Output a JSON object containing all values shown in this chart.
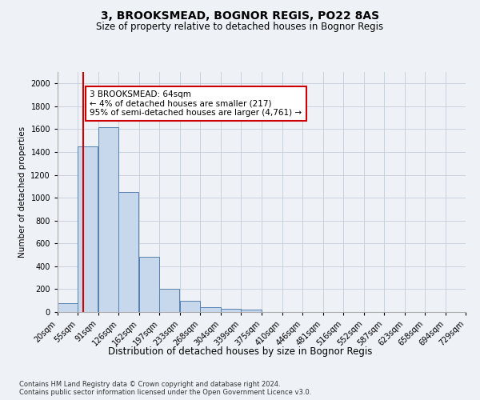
{
  "title1": "3, BROOKSMEAD, BOGNOR REGIS, PO22 8AS",
  "title2": "Size of property relative to detached houses in Bognor Regis",
  "xlabel": "Distribution of detached houses by size in Bognor Regis",
  "ylabel": "Number of detached properties",
  "bins": [
    "20sqm",
    "55sqm",
    "91sqm",
    "126sqm",
    "162sqm",
    "197sqm",
    "233sqm",
    "268sqm",
    "304sqm",
    "339sqm",
    "375sqm",
    "410sqm",
    "446sqm",
    "481sqm",
    "516sqm",
    "552sqm",
    "587sqm",
    "623sqm",
    "658sqm",
    "694sqm",
    "729sqm"
  ],
  "bin_left_edges": [
    20,
    55,
    91,
    126,
    162,
    197,
    233,
    268,
    304,
    339,
    375,
    410,
    446,
    481,
    516,
    552,
    587,
    623,
    658,
    694
  ],
  "bin_width": 35,
  "values": [
    75,
    1450,
    1620,
    1050,
    480,
    200,
    100,
    40,
    25,
    20,
    0,
    0,
    0,
    0,
    0,
    0,
    0,
    0,
    0,
    0
  ],
  "bar_color": "#c8d8ec",
  "bar_edge_color": "#5580b0",
  "property_size": 64,
  "property_line_color": "#cc0000",
  "annotation_text": "3 BROOKSMEAD: 64sqm\n← 4% of detached houses are smaller (217)\n95% of semi-detached houses are larger (4,761) →",
  "annotation_box_color": "#ffffff",
  "annotation_box_edge": "#cc0000",
  "ylim": [
    0,
    2100
  ],
  "yticks": [
    0,
    200,
    400,
    600,
    800,
    1000,
    1200,
    1400,
    1600,
    1800,
    2000
  ],
  "grid_color": "#c4cdd8",
  "background_color": "#eef2f7",
  "footer": "Contains HM Land Registry data © Crown copyright and database right 2024.\nContains public sector information licensed under the Open Government Licence v3.0.",
  "title1_fontsize": 10,
  "title2_fontsize": 8.5,
  "xlabel_fontsize": 8.5,
  "ylabel_fontsize": 7.5,
  "tick_fontsize": 7,
  "annotation_fontsize": 7.5,
  "footer_fontsize": 6
}
